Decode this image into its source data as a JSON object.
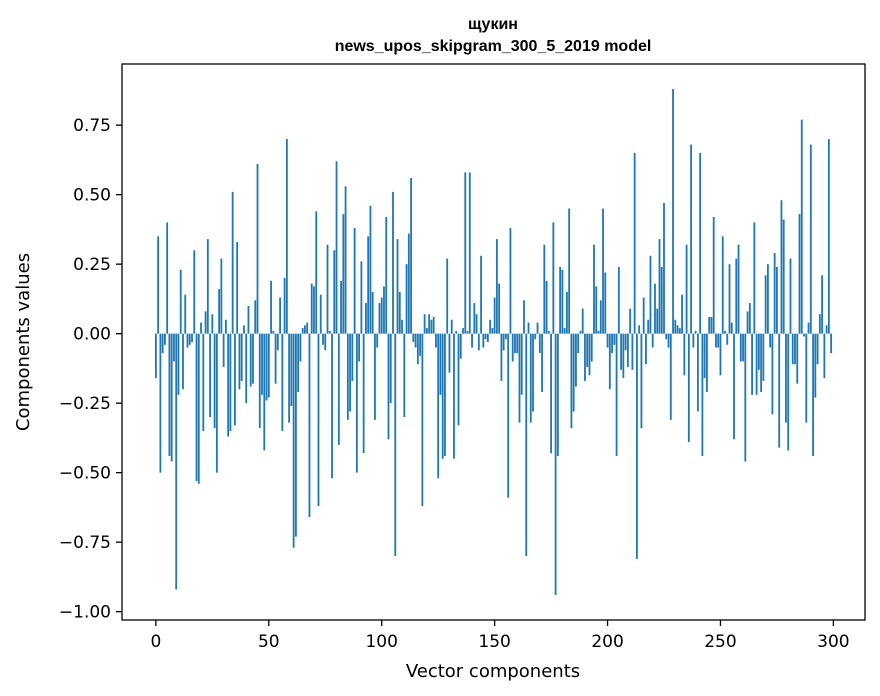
{
  "chart_data": {
    "type": "bar",
    "title_line1": "щукин",
    "title_line2": "news_upos_skipgram_300_5_2019 model",
    "xlabel": "Vector components",
    "ylabel": "Components values",
    "xlim": [
      -15,
      314
    ],
    "ylim": [
      -1.03,
      0.97
    ],
    "xticks": [
      0,
      50,
      100,
      150,
      200,
      250,
      300
    ],
    "xtick_labels": [
      "0",
      "50",
      "100",
      "150",
      "200",
      "250",
      "300"
    ],
    "yticks": [
      -1.0,
      -0.75,
      -0.5,
      -0.25,
      0.0,
      0.25,
      0.5,
      0.75
    ],
    "ytick_labels": [
      "−1.00",
      "−0.75",
      "−0.50",
      "−0.25",
      "0.00",
      "0.25",
      "0.50",
      "0.75"
    ],
    "bar_color": "#1f77b4",
    "values": [
      -0.16,
      0.35,
      -0.5,
      -0.07,
      -0.04,
      0.4,
      -0.44,
      -0.46,
      -0.1,
      -0.92,
      -0.22,
      0.23,
      -0.2,
      0.14,
      -0.05,
      -0.04,
      -0.03,
      0.3,
      -0.53,
      -0.54,
      0.04,
      -0.35,
      0.08,
      0.34,
      -0.3,
      0.07,
      -0.34,
      -0.5,
      0.16,
      0.27,
      -0.12,
      0.05,
      -0.37,
      -0.35,
      0.51,
      -0.33,
      0.33,
      -0.2,
      -0.17,
      0.03,
      -0.25,
      0.1,
      -0.19,
      -0.18,
      0.12,
      0.61,
      -0.34,
      -0.22,
      -0.42,
      -0.24,
      -0.23,
      0.19,
      0.01,
      -0.18,
      -0.06,
      0.13,
      -0.35,
      0.2,
      0.7,
      -0.32,
      -0.26,
      -0.77,
      -0.73,
      -0.21,
      -0.1,
      0.02,
      0.03,
      0.04,
      -0.66,
      0.18,
      0.17,
      0.44,
      -0.62,
      0.14,
      -0.04,
      -0.06,
      0.32,
      0.01,
      -0.52,
      0.3,
      0.62,
      -0.4,
      0.19,
      0.43,
      0.53,
      -0.31,
      -0.28,
      -0.17,
      0.38,
      -0.5,
      -0.1,
      0.26,
      -0.43,
      0.11,
      0.35,
      0.46,
      0.15,
      -0.31,
      -0.05,
      0.11,
      0.13,
      0.17,
      0.42,
      -0.38,
      -0.25,
      0.51,
      -0.8,
      0.34,
      0.15,
      0.05,
      -0.3,
      0.25,
      0.36,
      0.56,
      -0.03,
      -0.05,
      -0.11,
      -0.08,
      -0.62,
      0.07,
      0.02,
      0.07,
      0.05,
      0.06,
      -0.05,
      -0.52,
      -0.22,
      -0.45,
      -0.44,
      0.27,
      -0.14,
      0.05,
      -0.45,
      0.01,
      -0.33,
      -0.09,
      0.02,
      0.58,
      0.01,
      0.58,
      -0.05,
      0.11,
      0.07,
      -0.06,
      0.28,
      -0.05,
      -0.02,
      -0.03,
      0.05,
      0.02,
      0.13,
      0.34,
      0.18,
      -0.17,
      -0.06,
      -0.02,
      -0.59,
      0.38,
      -0.1,
      -0.07,
      -0.07,
      -0.32,
      -0.22,
      0.12,
      -0.8,
      0.04,
      -0.32,
      -0.28,
      -0.02,
      0.04,
      -0.07,
      -0.21,
      0.32,
      0.19,
      0.01,
      -0.43,
      0.4,
      -0.94,
      -0.44,
      0.24,
      0.23,
      0.02,
      0.15,
      0.45,
      -0.34,
      -0.28,
      -0.19,
      -0.07,
      0.01,
      0.09,
      -0.17,
      -0.12,
      -0.15,
      -0.1,
      0.32,
      0.17,
      0.01,
      0.12,
      0.45,
      0.22,
      -0.05,
      -0.2,
      -0.07,
      -0.04,
      -0.44,
      0.24,
      -0.13,
      -0.16,
      -0.06,
      -0.12,
      0.09,
      -0.13,
      0.65,
      -0.81,
      0.03,
      -0.34,
      0.13,
      -0.11,
      0.05,
      0.28,
      -0.05,
      0.18,
      0.09,
      0.34,
      0.24,
      0.47,
      -0.02,
      -0.05,
      -0.31,
      0.88,
      0.05,
      0.03,
      0.02,
      0.14,
      -0.15,
      0.32,
      -0.39,
      0.68,
      -0.05,
      0.01,
      -0.28,
      0.65,
      -0.44,
      -0.16,
      -0.21,
      0.06,
      0.06,
      0.42,
      -0.05,
      -0.05,
      -0.15,
      0.35,
      0.01,
      -0.04,
      0.25,
      0.04,
      -0.38,
      0.27,
      0.32,
      -0.1,
      -0.1,
      -0.46,
      0.08,
      0.11,
      -0.22,
      0.4,
      -0.22,
      -0.13,
      -0.21,
      -0.17,
      0.21,
      0.25,
      -0.05,
      -0.29,
      0.29,
      0.24,
      -0.41,
      0.48,
      0.41,
      -0.32,
      -0.42,
      0.27,
      -0.11,
      -0.11,
      -0.18,
      0.43,
      0.77,
      -0.01,
      -0.32,
      0.04,
      0.68,
      -0.44,
      -0.23,
      -0.11,
      0.07,
      0.21,
      -0.16,
      0.03,
      0.7,
      -0.07
    ]
  }
}
